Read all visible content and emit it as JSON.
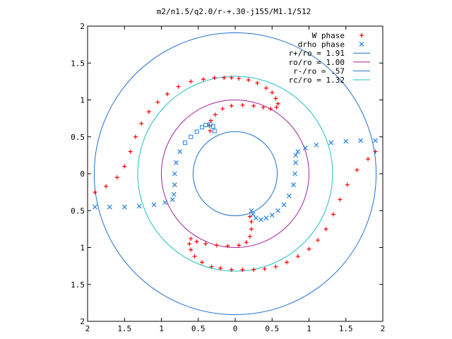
{
  "chart_data": {
    "type": "scatter",
    "title": "m2/n1.5/q2.0/r-+.30-j155/M1.1/512",
    "xlabel": "",
    "ylabel": "",
    "xlim": [
      -2,
      2
    ],
    "ylim": [
      -2,
      2
    ],
    "x_ticks": [
      -2,
      -1.5,
      -1,
      -0.5,
      0,
      0.5,
      1,
      1.5,
      2
    ],
    "y_ticks": [
      -2,
      -1.5,
      -1,
      -0.5,
      0,
      0.5,
      1,
      1.5,
      2
    ],
    "x_tick_labels": [
      "2",
      "1.5",
      "1",
      "0.5",
      "0",
      "0.5",
      "1",
      "1.5",
      "2"
    ],
    "y_tick_labels": [
      "2",
      "1.5",
      "1",
      "0.5",
      "0",
      "0.5",
      "1",
      "1.5",
      "2"
    ],
    "grid": false,
    "legend_position": "top-right",
    "series": [
      {
        "name": "W phase",
        "marker": "plus",
        "color": "#ff0000",
        "points": [
          [
            -1.9,
            -0.25
          ],
          [
            -1.75,
            -0.17
          ],
          [
            -1.6,
            -0.05
          ],
          [
            -1.5,
            0.1
          ],
          [
            -1.42,
            0.3
          ],
          [
            -1.35,
            0.5
          ],
          [
            -1.27,
            0.68
          ],
          [
            -1.17,
            0.84
          ],
          [
            -1.05,
            0.97
          ],
          [
            -0.92,
            1.08
          ],
          [
            -0.77,
            1.18
          ],
          [
            -0.6,
            1.25
          ],
          [
            -0.43,
            1.28
          ],
          [
            -0.28,
            1.3
          ],
          [
            -0.15,
            1.3
          ],
          [
            -0.05,
            1.3
          ],
          [
            0.05,
            1.29
          ],
          [
            0.18,
            1.27
          ],
          [
            0.3,
            1.23
          ],
          [
            0.42,
            1.16
          ],
          [
            0.5,
            1.1
          ],
          [
            0.55,
            1.02
          ],
          [
            0.58,
            0.95
          ],
          [
            0.56,
            0.9
          ],
          [
            0.48,
            0.88
          ],
          [
            0.38,
            0.9
          ],
          [
            0.25,
            0.92
          ],
          [
            0.1,
            0.93
          ],
          [
            -0.05,
            0.92
          ],
          [
            -0.17,
            0.88
          ],
          [
            -0.27,
            0.8
          ],
          [
            -0.33,
            0.72
          ],
          [
            -0.35,
            0.65
          ],
          [
            -0.34,
            0.58
          ],
          [
            1.9,
            0.3
          ],
          [
            1.8,
            0.2
          ],
          [
            1.65,
            0.05
          ],
          [
            1.52,
            -0.15
          ],
          [
            1.42,
            -0.35
          ],
          [
            1.33,
            -0.55
          ],
          [
            1.23,
            -0.75
          ],
          [
            1.12,
            -0.9
          ],
          [
            1.0,
            -1.02
          ],
          [
            0.85,
            -1.12
          ],
          [
            0.7,
            -1.2
          ],
          [
            0.55,
            -1.26
          ],
          [
            0.4,
            -1.29
          ],
          [
            0.25,
            -1.3
          ],
          [
            0.1,
            -1.3
          ],
          [
            -0.05,
            -1.3
          ],
          [
            -0.2,
            -1.28
          ],
          [
            -0.32,
            -1.26
          ],
          [
            -0.45,
            -1.2
          ],
          [
            -0.55,
            -1.12
          ],
          [
            -0.6,
            -1.03
          ],
          [
            -0.62,
            -0.95
          ],
          [
            -0.6,
            -0.88
          ],
          [
            -0.52,
            -0.92
          ],
          [
            -0.4,
            -0.95
          ],
          [
            -0.25,
            -0.97
          ],
          [
            -0.1,
            -0.98
          ],
          [
            0.05,
            -0.97
          ],
          [
            0.15,
            -0.93
          ],
          [
            0.2,
            -0.85
          ],
          [
            0.22,
            -0.75
          ],
          [
            0.22,
            -0.65
          ],
          [
            0.2,
            -0.58
          ]
        ]
      },
      {
        "name": "drho phase",
        "marker": "x-or-square",
        "color": "#2080e0",
        "points": [
          [
            -1.9,
            -0.45
          ],
          [
            -1.7,
            -0.45
          ],
          [
            -1.5,
            -0.45
          ],
          [
            -1.3,
            -0.44
          ],
          [
            -1.1,
            -0.42
          ],
          [
            -0.95,
            -0.39
          ],
          [
            -0.85,
            -0.35
          ],
          [
            -0.83,
            -0.28
          ],
          [
            -0.82,
            -0.15
          ],
          [
            -0.82,
            0.0
          ],
          [
            -0.8,
            0.15
          ],
          [
            -0.75,
            0.3
          ],
          [
            -0.68,
            0.42
          ],
          [
            -0.6,
            0.5
          ],
          [
            -0.52,
            0.57
          ],
          [
            -0.45,
            0.63
          ],
          [
            -0.4,
            0.66
          ],
          [
            -0.34,
            0.67
          ],
          [
            -0.3,
            0.64
          ],
          [
            -0.28,
            0.58
          ],
          [
            1.9,
            0.45
          ],
          [
            1.7,
            0.45
          ],
          [
            1.5,
            0.44
          ],
          [
            1.3,
            0.42
          ],
          [
            1.1,
            0.39
          ],
          [
            0.95,
            0.35
          ],
          [
            0.85,
            0.3
          ],
          [
            0.82,
            0.25
          ],
          [
            0.82,
            0.15
          ],
          [
            0.81,
            0.0
          ],
          [
            0.79,
            -0.15
          ],
          [
            0.73,
            -0.3
          ],
          [
            0.66,
            -0.42
          ],
          [
            0.58,
            -0.5
          ],
          [
            0.5,
            -0.56
          ],
          [
            0.42,
            -0.6
          ],
          [
            0.35,
            -0.62
          ],
          [
            0.28,
            -0.6
          ],
          [
            0.24,
            -0.55
          ],
          [
            0.22,
            -0.5
          ]
        ]
      },
      {
        "name": "r+/ro = 1.91",
        "type": "circle",
        "radius": 1.91,
        "color": "#2070d0"
      },
      {
        "name": "ro/ro = 1.00",
        "type": "circle",
        "radius": 1.0,
        "color": "#a020a0"
      },
      {
        "name": "r-/ro = .57",
        "type": "circle",
        "radius": 0.57,
        "color": "#2070d0"
      },
      {
        "name": "rc/ro = 1.32",
        "type": "circle",
        "radius": 1.32,
        "color": "#20c0c0"
      }
    ]
  }
}
